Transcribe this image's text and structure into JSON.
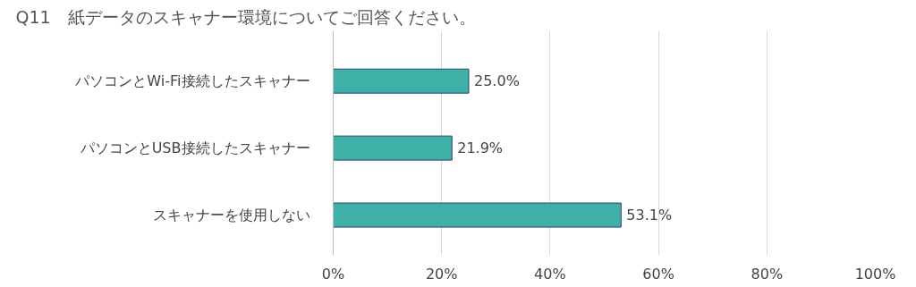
{
  "chart_data": {
    "type": "bar",
    "orientation": "horizontal",
    "title": "Q11　紙データのスキャナー環境についてご回答ください。",
    "categories": [
      "パソコンとWi-Fi接続したスキャナー",
      "パソコンとUSB接続したスキャナー",
      "スキャナーを使用しない"
    ],
    "values": [
      25.0,
      21.9,
      53.1
    ],
    "value_labels": [
      "25.0%",
      "21.9%",
      "53.1%"
    ],
    "color": "#3fb0a8",
    "xlim": [
      0,
      100
    ],
    "xticks": [
      {
        "value": 0,
        "label": "0%"
      },
      {
        "value": 20,
        "label": "20%"
      },
      {
        "value": 40,
        "label": "40%"
      },
      {
        "value": 60,
        "label": "60%"
      },
      {
        "value": 80,
        "label": "80%"
      },
      {
        "value": 100,
        "label": "100%"
      }
    ],
    "grid": "x"
  }
}
